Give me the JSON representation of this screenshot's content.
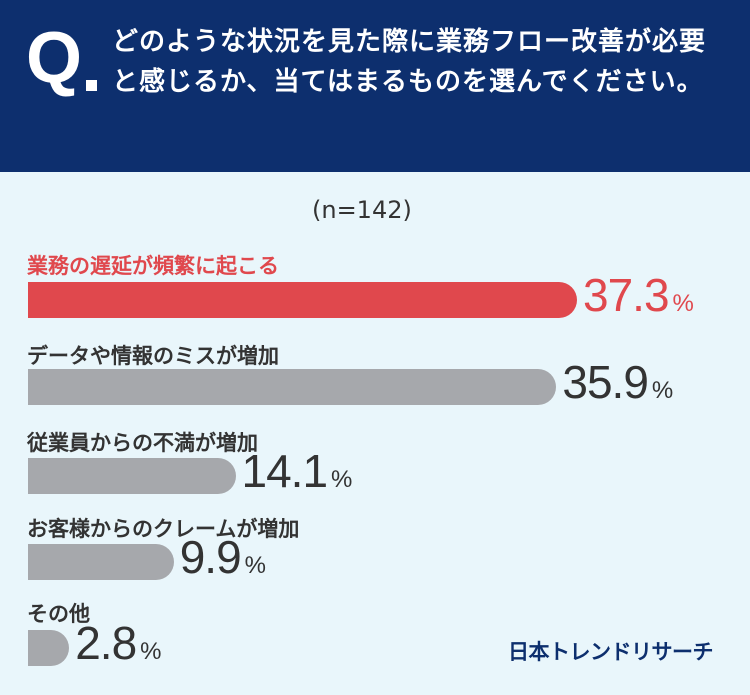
{
  "header": {
    "q_mark": "Q",
    "question": "どのような状況を見た際に業務フロー改善が必要と感じるか、当てはまるものを選んでください。"
  },
  "chart_data": {
    "type": "bar",
    "orientation": "horizontal",
    "n_label": "(n=142)",
    "unit": "%",
    "categories": [
      "業務の遅延が頻繁に起こる",
      "データや情報のミスが増加",
      "従業員からの不満が増加",
      "お客様からのクレームが増加",
      "その他"
    ],
    "values": [
      37.3,
      35.9,
      14.1,
      9.9,
      2.8
    ],
    "value_labels": [
      "37.3",
      "35.9",
      "14.1",
      "9.9",
      "2.8"
    ],
    "highlight_index": 0,
    "colors": {
      "highlight": "#e0484d",
      "default": "#a6a8ac",
      "header": "#0d2f6e"
    }
  },
  "brand": "日本トレンドリサーチ"
}
